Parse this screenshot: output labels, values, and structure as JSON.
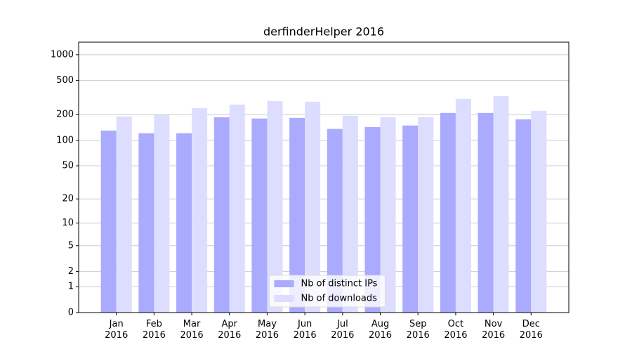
{
  "chart_data": {
    "type": "bar",
    "title": "derfinderHelper 2016",
    "categories": [
      "Jan\n2016",
      "Feb\n2016",
      "Mar\n2016",
      "Apr\n2016",
      "May\n2016",
      "Jun\n2016",
      "Jul\n2016",
      "Aug\n2016",
      "Sep\n2016",
      "Oct\n2016",
      "Nov\n2016",
      "Dec\n2016"
    ],
    "series": [
      {
        "name": "Nb of distinct IPs",
        "color": "#aaaaff",
        "values": [
          130,
          121,
          121,
          186,
          180,
          183,
          136,
          143,
          149,
          209,
          209,
          176
        ]
      },
      {
        "name": "Nb of downloads",
        "color": "#ddddff",
        "values": [
          190,
          198,
          238,
          262,
          288,
          283,
          194,
          187,
          187,
          305,
          329,
          221
        ]
      }
    ],
    "yscale": "log1p",
    "ylim": [
      0,
      1400
    ],
    "yticks": [
      0,
      1,
      2,
      5,
      10,
      20,
      50,
      100,
      200,
      500,
      1000
    ],
    "grid": true,
    "legend": "lower center"
  }
}
